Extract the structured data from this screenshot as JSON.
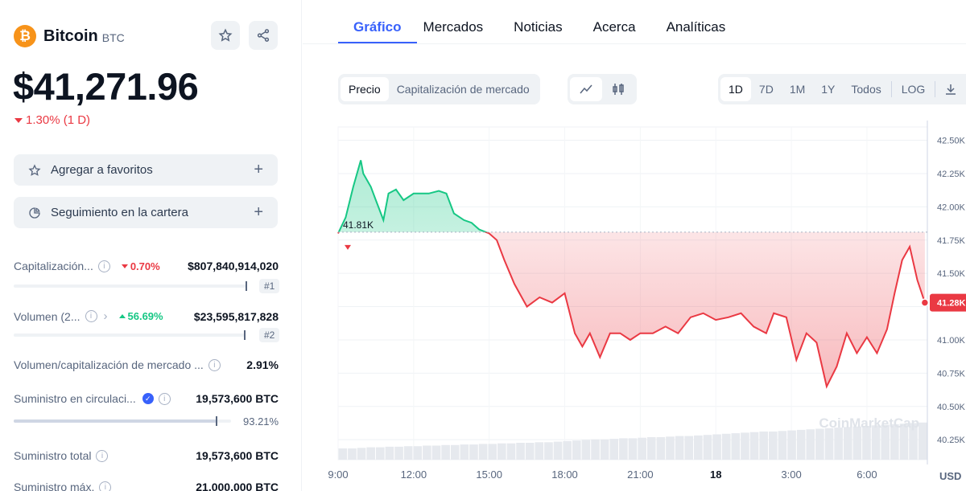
{
  "coin": {
    "logo_glyph": "₿",
    "name": "Bitcoin",
    "symbol": "BTC",
    "price": "$41,271.96",
    "change": "1.30% (1 D)",
    "brand_color": "#f7931a"
  },
  "actions": {
    "favorite_label": "Agregar a favoritos",
    "portfolio_label": "Seguimiento en la cartera",
    "plus": "+"
  },
  "stats": {
    "market_cap": {
      "label": "Capitalización...",
      "pct": "0.70%",
      "value": "$807,840,914,020",
      "rank": "#1"
    },
    "volume": {
      "label": "Volumen (2...",
      "pct": "56.69%",
      "value": "$23,595,817,828",
      "rank": "#2"
    },
    "vol_mcap": {
      "label": "Volumen/capitalización de mercado ...",
      "value": "2.91%"
    },
    "circulating": {
      "label": "Suministro en circulaci...",
      "value": "19,573,600 BTC",
      "pct": "93.21%",
      "progress": 0.9321
    },
    "total": {
      "label": "Suministro total",
      "value": "19,573,600 BTC"
    },
    "max": {
      "label": "Suministro máx.",
      "value": "21,000,000 BTC"
    }
  },
  "tabs": [
    "Gráfico",
    "Mercados",
    "Noticias",
    "Acerca",
    "Analíticas"
  ],
  "controls": {
    "price_label": "Precio",
    "mcap_label": "Capitalización de mercado",
    "ranges": [
      "1D",
      "7D",
      "1M",
      "1Y",
      "Todos"
    ],
    "log_label": "LOG"
  },
  "chart_data": {
    "type": "line",
    "title": "",
    "xlabel": "",
    "ylabel": "",
    "currency_label": "USD",
    "open_label": "41.81K",
    "current_label": "41.28K",
    "open_value": 41810,
    "current_value": 41280,
    "watermark": "CoinMarketCap",
    "ylim": [
      40100,
      42600
    ],
    "y_ticks": [
      42500,
      42250,
      42000,
      41750,
      41500,
      41250,
      41000,
      40750,
      40500,
      40250
    ],
    "y_tick_labels": [
      "42.50K",
      "42.25K",
      "42.00K",
      "41.75K",
      "41.50K",
      "41.25K",
      "41.00K",
      "40.75K",
      "40.50K",
      "40.25K"
    ],
    "x_range": [
      9.0,
      32.4
    ],
    "x_ticks": [
      9,
      12,
      15,
      18,
      21,
      24,
      27,
      30
    ],
    "x_tick_labels": [
      "9:00",
      "12:00",
      "15:00",
      "18:00",
      "21:00",
      "18",
      "3:00",
      "6:00"
    ],
    "x_hours": [
      9.0,
      9.3,
      9.6,
      9.9,
      10.0,
      10.3,
      10.5,
      10.8,
      11.0,
      11.3,
      11.6,
      12.0,
      12.3,
      12.6,
      13.0,
      13.3,
      13.6,
      14.0,
      14.3,
      14.6,
      15.0,
      15.3,
      15.6,
      16.0,
      16.5,
      17.0,
      17.5,
      18.0,
      18.4,
      18.7,
      19.0,
      19.4,
      19.8,
      20.2,
      20.6,
      21.0,
      21.5,
      22.0,
      22.5,
      23.0,
      23.5,
      24.0,
      24.5,
      25.0,
      25.5,
      26.0,
      26.3,
      26.8,
      27.2,
      27.6,
      28.0,
      28.4,
      28.8,
      29.2,
      29.6,
      30.0,
      30.4,
      30.8,
      31.1,
      31.4,
      31.7,
      32.0,
      32.3
    ],
    "values": [
      41800,
      41920,
      42150,
      42350,
      42250,
      42150,
      42050,
      41900,
      42100,
      42130,
      42050,
      42100,
      42100,
      42100,
      42120,
      42100,
      41950,
      41900,
      41880,
      41830,
      41800,
      41750,
      41600,
      41420,
      41250,
      41320,
      41280,
      41350,
      41050,
      40950,
      41050,
      40870,
      41050,
      41050,
      41000,
      41050,
      41050,
      41100,
      41050,
      41170,
      41200,
      41150,
      41170,
      41200,
      41100,
      41050,
      41200,
      41170,
      40850,
      41050,
      40980,
      40650,
      40800,
      41050,
      40900,
      41020,
      40900,
      41080,
      41350,
      41600,
      41700,
      41450,
      41280
    ],
    "volume": [
      20,
      20,
      21,
      22,
      22,
      23,
      23,
      24,
      24,
      25,
      25,
      26,
      26,
      27,
      27,
      28,
      28,
      29,
      29,
      30,
      30,
      31,
      31,
      32,
      33,
      34,
      35,
      36,
      36,
      37,
      38,
      38,
      39,
      40,
      40,
      41,
      42,
      42,
      43,
      44,
      45,
      46,
      47,
      48,
      49,
      50,
      50,
      51,
      52,
      53,
      54,
      55,
      56,
      57,
      58,
      59,
      60,
      61,
      62,
      63,
      64,
      65,
      66
    ]
  }
}
